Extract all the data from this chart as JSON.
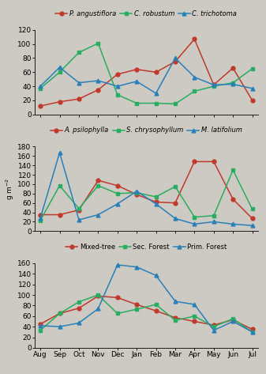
{
  "months": [
    "Aug",
    "Sep",
    "Oct",
    "Nov",
    "Dec",
    "Jan",
    "Feb",
    "Mar",
    "Apr",
    "May",
    "Jun",
    "Jul"
  ],
  "panel1": {
    "ylim": [
      0,
      120
    ],
    "yticks": [
      0,
      20,
      40,
      60,
      80,
      100,
      120
    ],
    "series": [
      {
        "label": "P. angustiflora",
        "italic": true,
        "color": "#c0392b",
        "marker": "o",
        "values": [
          12,
          18,
          22,
          35,
          57,
          64,
          60,
          75,
          107,
          42,
          66,
          20
        ]
      },
      {
        "label": "C. robustum",
        "italic": true,
        "color": "#27ae60",
        "marker": "s",
        "values": [
          37,
          60,
          88,
          101,
          28,
          16,
          16,
          15,
          33,
          40,
          45,
          65
        ]
      },
      {
        "label": "C. trichotoma",
        "italic": true,
        "color": "#2980b9",
        "marker": "^",
        "values": [
          40,
          67,
          45,
          48,
          40,
          47,
          30,
          80,
          53,
          42,
          43,
          37
        ]
      }
    ]
  },
  "panel2": {
    "ylim": [
      0,
      180
    ],
    "yticks": [
      0,
      20,
      40,
      60,
      80,
      100,
      120,
      140,
      160,
      180
    ],
    "series": [
      {
        "label": "A. psilophylla",
        "italic": true,
        "color": "#c0392b",
        "marker": "o",
        "values": [
          35,
          35,
          45,
          108,
          97,
          78,
          62,
          60,
          148,
          148,
          68,
          27
        ]
      },
      {
        "label": "S. chrysophyllum",
        "italic": true,
        "color": "#27ae60",
        "marker": "s",
        "values": [
          23,
          97,
          48,
          97,
          80,
          82,
          73,
          95,
          30,
          33,
          130,
          47
        ]
      },
      {
        "label": "M. latifolium",
        "italic": true,
        "color": "#2980b9",
        "marker": "^",
        "values": [
          28,
          167,
          24,
          35,
          58,
          85,
          58,
          27,
          15,
          20,
          15,
          12
        ]
      }
    ]
  },
  "panel3": {
    "ylim": [
      0,
      160
    ],
    "yticks": [
      0,
      20,
      40,
      60,
      80,
      100,
      120,
      140,
      160
    ],
    "series": [
      {
        "label": "Mixed-tree",
        "italic": false,
        "color": "#c0392b",
        "marker": "o",
        "values": [
          45,
          65,
          75,
          98,
          95,
          82,
          70,
          57,
          50,
          43,
          53,
          35
        ]
      },
      {
        "label": "Sec. Forest",
        "italic": false,
        "color": "#27ae60",
        "marker": "s",
        "values": [
          33,
          65,
          87,
          100,
          65,
          73,
          82,
          52,
          60,
          40,
          55,
          30
        ]
      },
      {
        "label": "Prim. Forest",
        "italic": false,
        "color": "#2980b9",
        "marker": "^",
        "values": [
          42,
          40,
          47,
          74,
          157,
          153,
          137,
          88,
          82,
          33,
          50,
          30
        ]
      }
    ]
  },
  "bg_color": "#cdc9c3",
  "font_size": 6.5,
  "tick_font_size": 6.5,
  "legend_font_size": 6.0,
  "line_width": 1.1,
  "marker_size": 3.5,
  "ylabel": "g m⁻²"
}
